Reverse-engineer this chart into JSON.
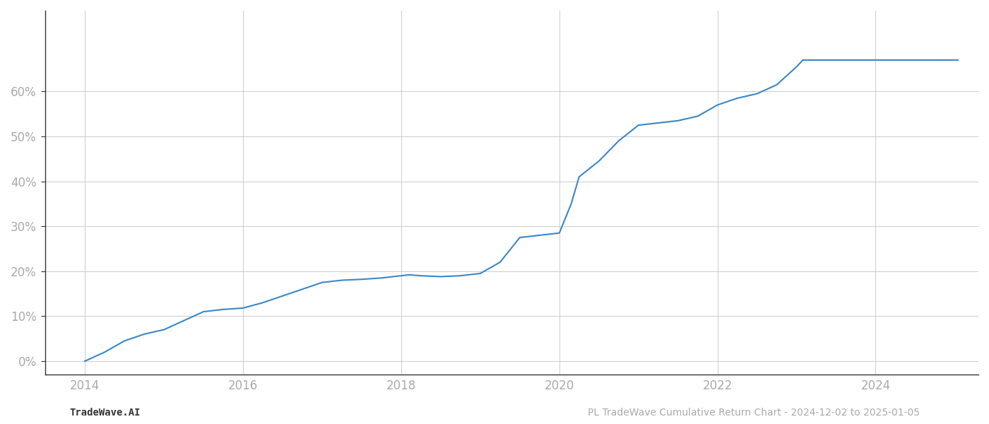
{
  "title": "",
  "footer_left": "TradeWave.AI",
  "footer_right": "PL TradeWave Cumulative Return Chart - 2024-12-02 to 2025-01-05",
  "line_color": "#3a87c8",
  "background_color": "#ffffff",
  "grid_color": "#cccccc",
  "x_years": [
    2014.0,
    2014.25,
    2014.5,
    2014.75,
    2015.0,
    2015.25,
    2015.5,
    2015.75,
    2016.0,
    2016.25,
    2016.5,
    2016.75,
    2017.0,
    2017.25,
    2017.5,
    2017.75,
    2018.0,
    2018.1,
    2018.25,
    2018.5,
    2018.75,
    2019.0,
    2019.25,
    2019.5,
    2019.75,
    2020.0,
    2020.15,
    2020.25,
    2020.5,
    2020.75,
    2021.0,
    2021.25,
    2021.5,
    2021.75,
    2022.0,
    2022.25,
    2022.5,
    2022.75,
    2023.0,
    2023.08,
    2023.25,
    2024.0,
    2024.5,
    2025.04
  ],
  "y_values": [
    0.0,
    2.0,
    4.5,
    6.0,
    7.0,
    9.0,
    11.0,
    11.5,
    11.8,
    13.0,
    14.5,
    16.0,
    17.5,
    18.0,
    18.2,
    18.5,
    19.0,
    19.2,
    19.0,
    18.8,
    19.0,
    19.5,
    22.0,
    27.5,
    28.0,
    28.5,
    35.0,
    41.0,
    44.5,
    49.0,
    52.5,
    53.0,
    53.5,
    54.5,
    57.0,
    58.5,
    59.5,
    61.5,
    65.5,
    67.0,
    67.0,
    67.0,
    67.0,
    67.0
  ],
  "xlim": [
    2013.5,
    2025.3
  ],
  "ylim": [
    -3,
    78
  ],
  "yticks": [
    0,
    10,
    20,
    30,
    40,
    50,
    60
  ],
  "ytick_labels": [
    "0%",
    "10%",
    "20%",
    "30%",
    "40%",
    "50%",
    "60%"
  ],
  "xticks": [
    2014,
    2016,
    2018,
    2020,
    2022,
    2024
  ],
  "xtick_labels": [
    "2014",
    "2016",
    "2018",
    "2020",
    "2022",
    "2024"
  ],
  "line_width": 1.5,
  "tick_color": "#aaaaaa",
  "spine_color": "#333333",
  "tick_fontsize": 12,
  "footer_fontsize": 10
}
